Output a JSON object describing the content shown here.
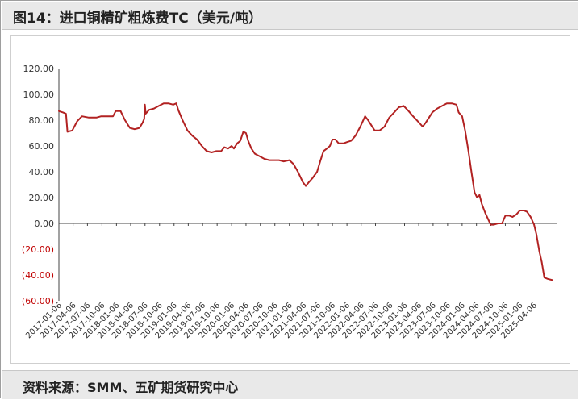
{
  "title": "图14：进口铜精矿粗炼费TC（美元/吨）",
  "source": "资料来源：SMM、五矿期货研究中心",
  "chart_data": {
    "type": "line",
    "title": "图14：进口铜精矿粗炼费TC（美元/吨）",
    "xlabel": "",
    "ylabel": "",
    "ylim": [
      -60,
      120
    ],
    "yticks": [
      120,
      100,
      80,
      60,
      40,
      20,
      0,
      -20,
      -40,
      -60
    ],
    "ytick_labels": [
      "120.00",
      "100.00",
      "80.00",
      "60.00",
      "40.00",
      "20.00",
      "0.00",
      "(20.00)",
      "(40.00)",
      "(60.00)"
    ],
    "negative_label_color": "#c00000",
    "positive_label_color": "#333333",
    "x_range": [
      "2017-01-06",
      "2025-09-01"
    ],
    "xtick_labels": [
      "2017-01-06",
      "2017-04-06",
      "2017-07-06",
      "2017-10-06",
      "2018-01-06",
      "2018-04-06",
      "2018-07-06",
      "2018-10-06",
      "2019-01-06",
      "2019-04-06",
      "2019-07-06",
      "2019-10-06",
      "2020-01-06",
      "2020-04-06",
      "2020-07-06",
      "2020-10-06",
      "2021-01-06",
      "2021-04-06",
      "2021-07-06",
      "2021-10-06",
      "2022-01-06",
      "2022-04-06",
      "2022-07-06",
      "2022-10-06",
      "2023-01-06",
      "2023-04-06",
      "2023-07-06",
      "2023-10-06",
      "2024-01-06",
      "2024-04-06",
      "2024-07-06",
      "2024-10-06",
      "2025-01-06",
      "2025-04-06"
    ],
    "grid": false,
    "legend": "none",
    "series": [
      {
        "color": "#b22222",
        "points": [
          [
            "2017-01-06",
            87
          ],
          [
            "2017-02-01",
            86
          ],
          [
            "2017-02-20",
            85
          ],
          [
            "2017-03-01",
            71
          ],
          [
            "2017-04-01",
            72
          ],
          [
            "2017-05-01",
            79
          ],
          [
            "2017-06-01",
            83
          ],
          [
            "2017-07-15",
            82
          ],
          [
            "2017-09-01",
            82
          ],
          [
            "2017-10-01",
            83
          ],
          [
            "2017-11-01",
            83
          ],
          [
            "2017-12-15",
            83
          ],
          [
            "2018-01-01",
            87
          ],
          [
            "2018-02-01",
            87
          ],
          [
            "2018-03-01",
            80
          ],
          [
            "2018-04-01",
            74
          ],
          [
            "2018-05-01",
            73
          ],
          [
            "2018-06-01",
            74
          ],
          [
            "2018-06-20",
            78
          ],
          [
            "2018-07-01",
            81
          ],
          [
            "2018-07-05",
            92
          ],
          [
            "2018-07-10",
            85
          ],
          [
            "2018-08-01",
            88
          ],
          [
            "2018-09-01",
            89
          ],
          [
            "2018-10-01",
            91
          ],
          [
            "2018-11-01",
            93
          ],
          [
            "2018-12-01",
            93
          ],
          [
            "2019-01-01",
            92
          ],
          [
            "2019-01-20",
            93
          ],
          [
            "2019-02-01",
            88
          ],
          [
            "2019-03-01",
            80
          ],
          [
            "2019-04-01",
            72
          ],
          [
            "2019-05-01",
            68
          ],
          [
            "2019-06-01",
            65
          ],
          [
            "2019-07-01",
            60
          ],
          [
            "2019-08-01",
            56
          ],
          [
            "2019-09-01",
            55
          ],
          [
            "2019-10-01",
            56
          ],
          [
            "2019-11-01",
            56
          ],
          [
            "2019-11-20",
            59
          ],
          [
            "2019-12-15",
            58
          ],
          [
            "2020-01-06",
            60
          ],
          [
            "2020-01-20",
            58
          ],
          [
            "2020-02-10",
            62
          ],
          [
            "2020-03-01",
            64
          ],
          [
            "2020-03-20",
            71
          ],
          [
            "2020-04-06",
            70
          ],
          [
            "2020-04-20",
            64
          ],
          [
            "2020-05-10",
            58
          ],
          [
            "2020-06-01",
            54
          ],
          [
            "2020-07-01",
            52
          ],
          [
            "2020-08-01",
            50
          ],
          [
            "2020-09-01",
            49
          ],
          [
            "2020-10-06",
            49
          ],
          [
            "2020-11-01",
            49
          ],
          [
            "2020-12-01",
            48
          ],
          [
            "2021-01-06",
            49
          ],
          [
            "2021-02-01",
            46
          ],
          [
            "2021-03-01",
            40
          ],
          [
            "2021-04-01",
            32
          ],
          [
            "2021-04-20",
            29
          ],
          [
            "2021-05-10",
            32
          ],
          [
            "2021-06-01",
            35
          ],
          [
            "2021-07-01",
            40
          ],
          [
            "2021-07-20",
            48
          ],
          [
            "2021-08-10",
            56
          ],
          [
            "2021-09-01",
            58
          ],
          [
            "2021-09-20",
            60
          ],
          [
            "2021-10-06",
            65
          ],
          [
            "2021-10-25",
            65
          ],
          [
            "2021-11-15",
            62
          ],
          [
            "2021-12-15",
            62
          ],
          [
            "2022-01-06",
            63
          ],
          [
            "2022-02-01",
            64
          ],
          [
            "2022-03-01",
            68
          ],
          [
            "2022-04-01",
            75
          ],
          [
            "2022-05-01",
            83
          ],
          [
            "2022-05-20",
            80
          ],
          [
            "2022-06-10",
            76
          ],
          [
            "2022-07-01",
            72
          ],
          [
            "2022-08-01",
            72
          ],
          [
            "2022-09-01",
            75
          ],
          [
            "2022-10-01",
            82
          ],
          [
            "2022-11-01",
            86
          ],
          [
            "2022-12-01",
            90
          ],
          [
            "2023-01-01",
            91
          ],
          [
            "2023-02-01",
            87
          ],
          [
            "2023-03-01",
            83
          ],
          [
            "2023-04-01",
            79
          ],
          [
            "2023-05-01",
            75
          ],
          [
            "2023-05-20",
            78
          ],
          [
            "2023-06-10",
            82
          ],
          [
            "2023-07-01",
            86
          ],
          [
            "2023-08-01",
            89
          ],
          [
            "2023-09-01",
            91
          ],
          [
            "2023-10-01",
            93
          ],
          [
            "2023-11-01",
            93
          ],
          [
            "2023-12-01",
            92
          ],
          [
            "2023-12-15",
            86
          ],
          [
            "2024-01-06",
            83
          ],
          [
            "2024-01-25",
            72
          ],
          [
            "2024-02-15",
            56
          ],
          [
            "2024-03-05",
            40
          ],
          [
            "2024-03-25",
            24
          ],
          [
            "2024-04-10",
            20
          ],
          [
            "2024-04-25",
            22
          ],
          [
            "2024-05-10",
            15
          ],
          [
            "2024-06-01",
            8
          ],
          [
            "2024-06-20",
            3
          ],
          [
            "2024-07-05",
            -1
          ],
          [
            "2024-07-25",
            -1
          ],
          [
            "2024-08-20",
            0
          ],
          [
            "2024-09-15",
            0
          ],
          [
            "2024-10-06",
            6
          ],
          [
            "2024-11-01",
            6
          ],
          [
            "2024-11-20",
            5
          ],
          [
            "2024-12-15",
            7
          ],
          [
            "2025-01-06",
            10
          ],
          [
            "2025-02-01",
            10
          ],
          [
            "2025-02-20",
            9
          ],
          [
            "2025-03-15",
            5
          ],
          [
            "2025-04-06",
            -1
          ],
          [
            "2025-04-20",
            -8
          ],
          [
            "2025-05-10",
            -22
          ],
          [
            "2025-05-25",
            -30
          ],
          [
            "2025-06-10",
            -42
          ],
          [
            "2025-07-01",
            -43
          ],
          [
            "2025-08-01",
            -44
          ]
        ]
      }
    ]
  }
}
